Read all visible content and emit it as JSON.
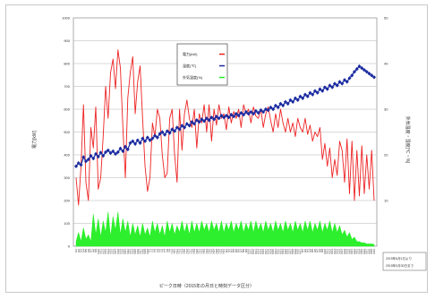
{
  "chart_data": {
    "type": "line",
    "title": "",
    "xlabel": "ピーク日時（2015年の月日と時刻データ区分）",
    "ylabel_left": "電力[kW]",
    "ylabel_right": "外気温度・湿度[℃・%]",
    "ylim_left": [
      0,
      1000
    ],
    "yticks_left": [
      "0",
      "100",
      "200",
      "300",
      "400",
      "500",
      "600",
      "700",
      "800",
      "900",
      "1000"
    ],
    "ylim_right": [
      0,
      50
    ],
    "yticks_right": [
      "10",
      "20",
      "30",
      "40",
      "50"
    ],
    "grid": true,
    "legend": [
      "電力(kW)",
      "温度(℃)",
      "外気湿度(%)"
    ],
    "note": [
      "2015年6月1日より",
      "2015年9月30日まで"
    ],
    "x_tick_labels": [
      "6/1",
      "6/2",
      "6/3",
      "6/4",
      "6/5",
      "6/6",
      "6/7",
      "6/8",
      "6/9",
      "6/10",
      "6/11",
      "6/12",
      "6/13",
      "6/14",
      "6/15",
      "6/16",
      "6/17",
      "6/18",
      "6/19",
      "6/20",
      "6/21",
      "6/22",
      "6/23",
      "6/24",
      "6/25",
      "6/26",
      "6/27",
      "6/28",
      "6/29",
      "6/30",
      "7/1",
      "7/2",
      "7/3",
      "7/4",
      "7/5",
      "7/6",
      "7/7",
      "7/8",
      "7/9",
      "7/10",
      "7/11",
      "7/12",
      "7/13",
      "7/14",
      "7/15",
      "7/16",
      "7/17",
      "7/18",
      "7/19",
      "7/20",
      "7/21",
      "7/22",
      "7/23",
      "7/24",
      "7/25",
      "7/26",
      "7/27",
      "7/28",
      "7/29",
      "7/30",
      "7/31",
      "8/1",
      "8/2",
      "8/3",
      "8/4",
      "8/5",
      "8/6",
      "8/7",
      "8/8",
      "8/9",
      "8/10",
      "8/11",
      "8/12",
      "8/13",
      "8/14",
      "8/15",
      "8/16",
      "8/17",
      "8/18",
      "8/19",
      "8/20",
      "8/21",
      "8/22",
      "8/23",
      "8/24",
      "8/25",
      "8/26",
      "8/27",
      "8/28",
      "8/29",
      "8/30",
      "8/31",
      "9/1",
      "9/2",
      "9/3",
      "9/4",
      "9/5",
      "9/6",
      "9/7",
      "9/8",
      "9/9",
      "9/10",
      "9/11",
      "9/12",
      "9/13",
      "9/14",
      "9/15",
      "9/16",
      "9/17",
      "9/18",
      "9/19",
      "9/20",
      "9/21",
      "9/22",
      "9/23",
      "9/24",
      "9/25",
      "9/26",
      "9/27",
      "9/28",
      "9/29",
      "9/30"
    ],
    "series": [
      {
        "name": "電力(kW)",
        "axis": "left",
        "color": "#ee2222",
        "x": [
          0,
          1,
          2,
          3,
          4,
          5,
          6,
          7,
          8,
          9,
          10,
          11,
          12,
          13,
          14,
          15,
          16,
          17,
          18,
          19,
          20,
          21,
          22,
          23,
          24,
          25,
          26,
          27,
          28,
          29,
          30,
          31,
          32,
          33,
          34,
          35,
          36,
          37,
          38,
          39,
          40,
          41,
          42,
          43,
          44,
          45,
          46,
          47,
          48,
          49,
          50,
          51,
          52,
          53,
          54,
          55,
          56,
          57,
          58,
          59,
          60,
          61,
          62,
          63,
          64,
          65,
          66,
          67,
          68,
          69,
          70,
          71,
          72,
          73,
          74,
          75,
          76,
          77,
          78,
          79,
          80,
          81,
          82,
          83,
          84,
          85,
          86,
          87,
          88,
          89,
          90,
          91,
          92,
          93,
          94,
          95,
          96,
          97,
          98,
          99,
          100,
          101,
          102,
          103,
          104,
          105,
          106,
          107,
          108,
          109,
          110,
          111,
          112,
          113,
          114,
          115,
          116,
          117,
          118,
          119,
          120,
          121
        ],
        "values": [
          300,
          180,
          350,
          620,
          280,
          200,
          520,
          430,
          610,
          250,
          300,
          480,
          700,
          560,
          760,
          820,
          690,
          860,
          780,
          520,
          300,
          650,
          760,
          830,
          580,
          720,
          790,
          560,
          350,
          240,
          300,
          540,
          480,
          600,
          560,
          400,
          300,
          320,
          560,
          600,
          400,
          280,
          600,
          420,
          580,
          640,
          560,
          520,
          600,
          430,
          580,
          540,
          620,
          500,
          620,
          460,
          600,
          530,
          620,
          560,
          580,
          510,
          610,
          540,
          590,
          560,
          600,
          520,
          620,
          580,
          600,
          540,
          610,
          570,
          560,
          600,
          520,
          580,
          610,
          550,
          500,
          580,
          520,
          600,
          540,
          500,
          560,
          500,
          540,
          480,
          560,
          520,
          500,
          560,
          490,
          530,
          460,
          500,
          480,
          520,
          380,
          450,
          350,
          430,
          300,
          380,
          310,
          460,
          420,
          280,
          470,
          230,
          460,
          200,
          420,
          220,
          440,
          230,
          400,
          250,
          420,
          200
        ]
      },
      {
        "name": "温度(℃)",
        "axis": "right",
        "color": "#1a2aa0",
        "x": [
          0,
          1,
          2,
          3,
          4,
          5,
          6,
          7,
          8,
          9,
          10,
          11,
          12,
          13,
          14,
          15,
          16,
          17,
          18,
          19,
          20,
          21,
          22,
          23,
          24,
          25,
          26,
          27,
          28,
          29,
          30,
          31,
          32,
          33,
          34,
          35,
          36,
          37,
          38,
          39,
          40,
          41,
          42,
          43,
          44,
          45,
          46,
          47,
          48,
          49,
          50,
          51,
          52,
          53,
          54,
          55,
          56,
          57,
          58,
          59,
          60,
          61,
          62,
          63,
          64,
          65,
          66,
          67,
          68,
          69,
          70,
          71,
          72,
          73,
          74,
          75,
          76,
          77,
          78,
          79,
          80,
          81,
          82,
          83,
          84,
          85,
          86,
          87,
          88,
          89,
          90,
          91,
          92,
          93,
          94,
          95,
          96,
          97,
          98,
          99,
          100,
          101,
          102,
          103,
          104,
          105,
          106,
          107,
          108,
          109,
          110,
          111,
          112,
          113,
          114,
          115,
          116,
          117,
          118,
          119,
          120,
          121
        ],
        "values": [
          17.5,
          18.2,
          17.8,
          19.5,
          18.6,
          19.0,
          19.8,
          19.2,
          20.2,
          19.6,
          20.5,
          19.8,
          20.6,
          21.0,
          20.4,
          20.8,
          20.2,
          20.6,
          21.4,
          20.8,
          21.8,
          21.2,
          22.6,
          23.0,
          22.4,
          23.2,
          22.6,
          23.6,
          23.0,
          23.8,
          23.2,
          23.6,
          24.2,
          23.8,
          24.6,
          25.0,
          24.4,
          25.2,
          24.8,
          25.6,
          25.2,
          26.0,
          25.6,
          26.4,
          26.0,
          26.8,
          26.4,
          27.2,
          26.8,
          27.6,
          27.2,
          27.8,
          27.4,
          28.0,
          27.6,
          28.2,
          27.8,
          28.4,
          28.0,
          28.6,
          28.2,
          28.6,
          28.2,
          28.8,
          28.4,
          29.0,
          28.6,
          29.2,
          28.8,
          29.4,
          29.0,
          29.4,
          29.0,
          29.6,
          29.2,
          29.8,
          29.4,
          30.0,
          29.8,
          30.4,
          30.0,
          30.8,
          30.4,
          31.2,
          30.8,
          31.6,
          31.2,
          32.0,
          31.6,
          32.4,
          32.0,
          32.8,
          32.4,
          33.2,
          32.8,
          33.6,
          33.2,
          34.0,
          33.6,
          34.4,
          34.0,
          34.8,
          34.4,
          35.2,
          34.8,
          35.6,
          35.2,
          36.0,
          35.6,
          36.4,
          36.0,
          36.8,
          37.4,
          38.2,
          38.8,
          39.4,
          39.0,
          38.6,
          38.2,
          37.8,
          37.4,
          37.0
        ]
      },
      {
        "name": "外気湿度(%)",
        "axis": "left",
        "color": "#22ee22",
        "x": [
          0,
          1,
          2,
          3,
          4,
          5,
          6,
          7,
          8,
          9,
          10,
          11,
          12,
          13,
          14,
          15,
          16,
          17,
          18,
          19,
          20,
          21,
          22,
          23,
          24,
          25,
          26,
          27,
          28,
          29,
          30,
          31,
          32,
          33,
          34,
          35,
          36,
          37,
          38,
          39,
          40,
          41,
          42,
          43,
          44,
          45,
          46,
          47,
          48,
          49,
          50,
          51,
          52,
          53,
          54,
          55,
          56,
          57,
          58,
          59,
          60,
          61,
          62,
          63,
          64,
          65,
          66,
          67,
          68,
          69,
          70,
          71,
          72,
          73,
          74,
          75,
          76,
          77,
          78,
          79,
          80,
          81,
          82,
          83,
          84,
          85,
          86,
          87,
          88,
          89,
          90,
          91,
          92,
          93,
          94,
          95,
          96,
          97,
          98,
          99,
          100,
          101,
          102,
          103,
          104,
          105,
          106,
          107,
          108,
          109,
          110,
          111,
          112,
          113,
          114,
          115,
          116,
          117,
          118,
          119,
          120,
          121
        ],
        "values": [
          20,
          60,
          20,
          80,
          30,
          50,
          20,
          140,
          50,
          120,
          40,
          110,
          60,
          150,
          40,
          130,
          70,
          150,
          50,
          120,
          60,
          110,
          40,
          100,
          50,
          90,
          40,
          100,
          50,
          80,
          40,
          110,
          60,
          100,
          50,
          90,
          40,
          110,
          60,
          100,
          50,
          90,
          60,
          110,
          60,
          100,
          50,
          110,
          60,
          100,
          60,
          110,
          70,
          100,
          60,
          110,
          70,
          100,
          60,
          110,
          60,
          100,
          70,
          110,
          60,
          100,
          70,
          110,
          60,
          100,
          70,
          110,
          60,
          110,
          70,
          100,
          60,
          110,
          70,
          100,
          60,
          110,
          70,
          100,
          60,
          110,
          70,
          100,
          60,
          110,
          70,
          100,
          60,
          110,
          70,
          110,
          60,
          100,
          70,
          110,
          60,
          100,
          70,
          110,
          60,
          100,
          60,
          90,
          50,
          70,
          40,
          60,
          30,
          40,
          20,
          20,
          15,
          15,
          10,
          10,
          10,
          8
        ]
      }
    ]
  }
}
